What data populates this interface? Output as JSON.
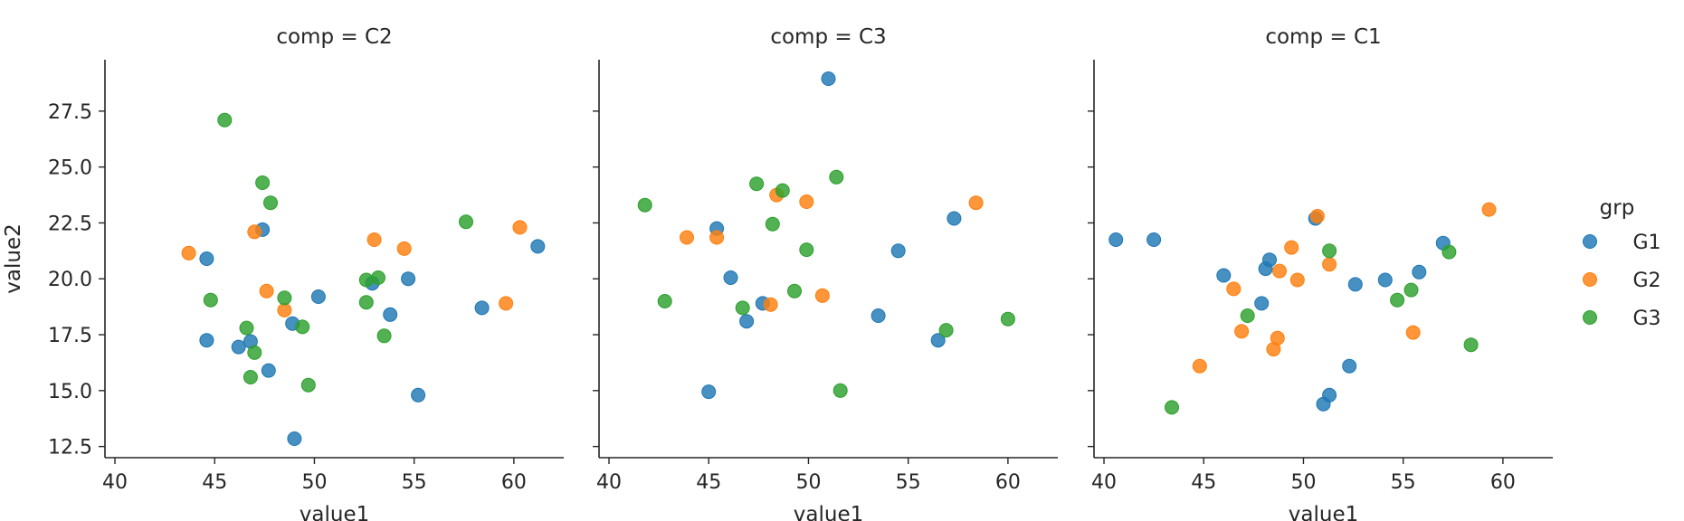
{
  "chart_data": {
    "type": "scatter",
    "xlabel": "value1",
    "ylabel": "value2",
    "xlim": [
      39.5,
      62.5
    ],
    "ylim": [
      12.0,
      29.8
    ],
    "xticks": [
      40,
      45,
      50,
      55,
      60
    ],
    "yticks": [
      12.5,
      15.0,
      17.5,
      20.0,
      22.5,
      25.0,
      27.5
    ],
    "xtick_labels": [
      "40",
      "45",
      "50",
      "55",
      "60"
    ],
    "ytick_labels": [
      "12.5",
      "15.0",
      "17.5",
      "20.0",
      "22.5",
      "25.0",
      "27.5"
    ],
    "grid": false,
    "legend": {
      "title": "grp",
      "placement": "right",
      "entries": [
        {
          "label": "G1",
          "color": "#1f77b4"
        },
        {
          "label": "G2",
          "color": "#ff7f0e"
        },
        {
          "label": "G3",
          "color": "#2ca02c"
        }
      ]
    },
    "panels": [
      {
        "title": "comp = C2",
        "series": [
          {
            "name": "G1",
            "color": "#1f77b4",
            "points": [
              [
                44.6,
                20.9
              ],
              [
                44.6,
                17.25
              ],
              [
                46.2,
                16.95
              ],
              [
                46.8,
                17.2
              ],
              [
                47.4,
                22.2
              ],
              [
                47.7,
                15.9
              ],
              [
                48.9,
                18.0
              ],
              [
                49.0,
                12.85
              ],
              [
                50.2,
                19.2
              ],
              [
                52.9,
                19.8
              ],
              [
                53.8,
                18.4
              ],
              [
                54.7,
                20.0
              ],
              [
                55.2,
                14.8
              ],
              [
                58.4,
                18.7
              ],
              [
                61.2,
                21.45
              ]
            ]
          },
          {
            "name": "G2",
            "color": "#ff7f0e",
            "points": [
              [
                43.7,
                21.15
              ],
              [
                47.0,
                22.1
              ],
              [
                47.6,
                19.45
              ],
              [
                48.5,
                18.6
              ],
              [
                53.0,
                21.75
              ],
              [
                54.5,
                21.35
              ],
              [
                59.6,
                18.9
              ],
              [
                60.3,
                22.3
              ]
            ]
          },
          {
            "name": "G3",
            "color": "#2ca02c",
            "points": [
              [
                44.8,
                19.05
              ],
              [
                45.5,
                27.1
              ],
              [
                46.6,
                17.8
              ],
              [
                46.8,
                15.6
              ],
              [
                47.0,
                16.7
              ],
              [
                47.4,
                24.3
              ],
              [
                47.8,
                23.4
              ],
              [
                48.5,
                19.15
              ],
              [
                49.4,
                17.85
              ],
              [
                49.7,
                15.25
              ],
              [
                52.6,
                19.95
              ],
              [
                52.6,
                18.95
              ],
              [
                53.2,
                20.05
              ],
              [
                53.5,
                17.45
              ],
              [
                57.6,
                22.55
              ]
            ]
          }
        ]
      },
      {
        "title": "comp = C3",
        "series": [
          {
            "name": "G1",
            "color": "#1f77b4",
            "points": [
              [
                45.0,
                14.95
              ],
              [
                45.4,
                22.25
              ],
              [
                46.1,
                20.05
              ],
              [
                46.9,
                18.1
              ],
              [
                47.7,
                18.9
              ],
              [
                51.0,
                28.95
              ],
              [
                53.5,
                18.35
              ],
              [
                54.5,
                21.25
              ],
              [
                56.5,
                17.25
              ],
              [
                57.3,
                22.7
              ]
            ]
          },
          {
            "name": "G2",
            "color": "#ff7f0e",
            "points": [
              [
                43.9,
                21.85
              ],
              [
                45.4,
                21.85
              ],
              [
                48.1,
                18.85
              ],
              [
                48.4,
                23.75
              ],
              [
                49.9,
                23.45
              ],
              [
                50.7,
                19.25
              ],
              [
                58.4,
                23.4
              ]
            ]
          },
          {
            "name": "G3",
            "color": "#2ca02c",
            "points": [
              [
                41.8,
                23.3
              ],
              [
                42.8,
                19.0
              ],
              [
                46.7,
                18.7
              ],
              [
                47.4,
                24.25
              ],
              [
                48.2,
                22.45
              ],
              [
                48.7,
                23.95
              ],
              [
                49.3,
                19.45
              ],
              [
                49.9,
                21.3
              ],
              [
                51.4,
                24.55
              ],
              [
                51.6,
                15.0
              ],
              [
                56.9,
                17.7
              ],
              [
                60.0,
                18.2
              ]
            ]
          }
        ]
      },
      {
        "title": "comp = C1",
        "series": [
          {
            "name": "G1",
            "color": "#1f77b4",
            "points": [
              [
                40.6,
                21.75
              ],
              [
                42.5,
                21.75
              ],
              [
                46.0,
                20.15
              ],
              [
                47.9,
                18.9
              ],
              [
                48.1,
                20.45
              ],
              [
                48.3,
                20.85
              ],
              [
                50.6,
                22.7
              ],
              [
                51.0,
                14.4
              ],
              [
                51.3,
                14.8
              ],
              [
                52.3,
                16.1
              ],
              [
                52.6,
                19.75
              ],
              [
                54.1,
                19.95
              ],
              [
                55.8,
                20.3
              ],
              [
                57.0,
                21.6
              ]
            ]
          },
          {
            "name": "G2",
            "color": "#ff7f0e",
            "points": [
              [
                44.8,
                16.1
              ],
              [
                46.5,
                19.55
              ],
              [
                46.9,
                17.65
              ],
              [
                48.5,
                16.85
              ],
              [
                48.7,
                17.35
              ],
              [
                48.8,
                20.35
              ],
              [
                49.4,
                21.4
              ],
              [
                49.7,
                19.95
              ],
              [
                50.7,
                22.8
              ],
              [
                51.3,
                20.65
              ],
              [
                55.5,
                17.6
              ],
              [
                59.3,
                23.1
              ]
            ]
          },
          {
            "name": "G3",
            "color": "#2ca02c",
            "points": [
              [
                43.4,
                14.25
              ],
              [
                47.2,
                18.35
              ],
              [
                51.3,
                21.25
              ],
              [
                54.7,
                19.05
              ],
              [
                55.4,
                19.5
              ],
              [
                57.3,
                21.2
              ],
              [
                58.4,
                17.05
              ]
            ]
          }
        ]
      }
    ]
  }
}
